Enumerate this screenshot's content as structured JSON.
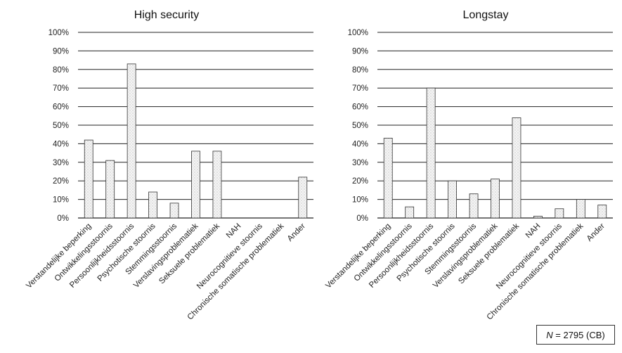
{
  "footnote": {
    "n_symbol": "N",
    "n_text": " = 2795 (CB)"
  },
  "chart_data": [
    {
      "type": "bar",
      "title": "High security",
      "categories": [
        "Verstandelijke beperking",
        "Ontwikkelingsstoornis",
        "Persoonlijkheidsstoornis",
        "Psychotische stoornis",
        "Stemmingsstoornis",
        "Verslavingsproblematiek",
        "Seksuele problematiek",
        "NAH",
        "Neurocognitieve stoornis",
        "Chronische somatische problematiek",
        "Ander"
      ],
      "values": [
        42,
        31,
        83,
        14,
        8,
        36,
        36,
        0,
        0,
        0,
        22
      ],
      "ylim": [
        0,
        100
      ],
      "yticks": [
        "0%",
        "10%",
        "20%",
        "30%",
        "40%",
        "50%",
        "60%",
        "70%",
        "80%",
        "90%",
        "100%"
      ],
      "grid": true,
      "colors": {
        "bar_fill": "#f1f1f1",
        "bar_stroke": "#333333",
        "grid": "#222222"
      }
    },
    {
      "type": "bar",
      "title": "Longstay",
      "categories": [
        "Verstandelijke beperking",
        "Ontwikkelingsstoornis",
        "Persoonlijkheidsstoornis",
        "Psychotische stoornis",
        "Stemmingsstoornis",
        "Verslavingsproblematiek",
        "Seksuele problematiek",
        "NAH",
        "Neurocognitieve stoornis",
        "Chronische somatische problematiek",
        "Ander"
      ],
      "values": [
        43,
        6,
        70,
        20,
        13,
        21,
        54,
        1,
        5,
        10,
        7
      ],
      "ylim": [
        0,
        100
      ],
      "yticks": [
        "0%",
        "10%",
        "20%",
        "30%",
        "40%",
        "50%",
        "60%",
        "70%",
        "80%",
        "90%",
        "100%"
      ],
      "grid": true,
      "colors": {
        "bar_fill": "#f1f1f1",
        "bar_stroke": "#333333",
        "grid": "#222222"
      }
    }
  ]
}
